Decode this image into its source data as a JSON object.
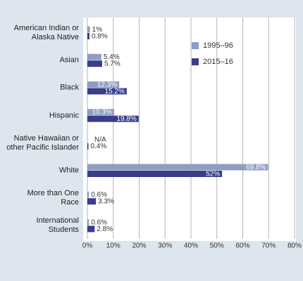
{
  "chart_data": {
    "type": "barh",
    "categories": [
      "American Indian or\nAlaska Native",
      "Asian",
      "Black",
      "Hispanic",
      "Native Hawaiian or\nother Pacific Islander",
      "White",
      "More than One\nRace",
      "International\nStudents"
    ],
    "series": [
      {
        "name": "1995–96",
        "color": "#8e9dc4",
        "values": [
          1,
          5.4,
          12.3,
          10.3,
          null,
          69.8,
          0.6,
          0.6
        ],
        "value_labels": [
          "1%",
          "5.4%",
          "12.3%",
          "10.3%",
          "N/A",
          "69.8%",
          "0.6%",
          "0.6%"
        ]
      },
      {
        "name": "2015–16",
        "color": "#393d8a",
        "values": [
          0.8,
          5.7,
          15.2,
          19.8,
          0.4,
          52,
          3.3,
          2.8
        ],
        "value_labels": [
          "0.8%",
          "5.7%",
          "15.2%",
          "19.8%",
          "0.4%",
          "52%",
          "3.3%",
          "2.8%"
        ]
      }
    ],
    "xlim": [
      0,
      80
    ],
    "xticks": [
      {
        "value": 0,
        "label": "0%"
      },
      {
        "value": 10,
        "label": "10%"
      },
      {
        "value": 20,
        "label": "20%"
      },
      {
        "value": 30,
        "label": "30%"
      },
      {
        "value": 40,
        "label": "40%"
      },
      {
        "value": 50,
        "label": "50%"
      },
      {
        "value": 60,
        "label": "60%"
      },
      {
        "value": 70,
        "label": "70%"
      },
      {
        "value": 80,
        "label": "80%"
      }
    ],
    "grid": true
  }
}
